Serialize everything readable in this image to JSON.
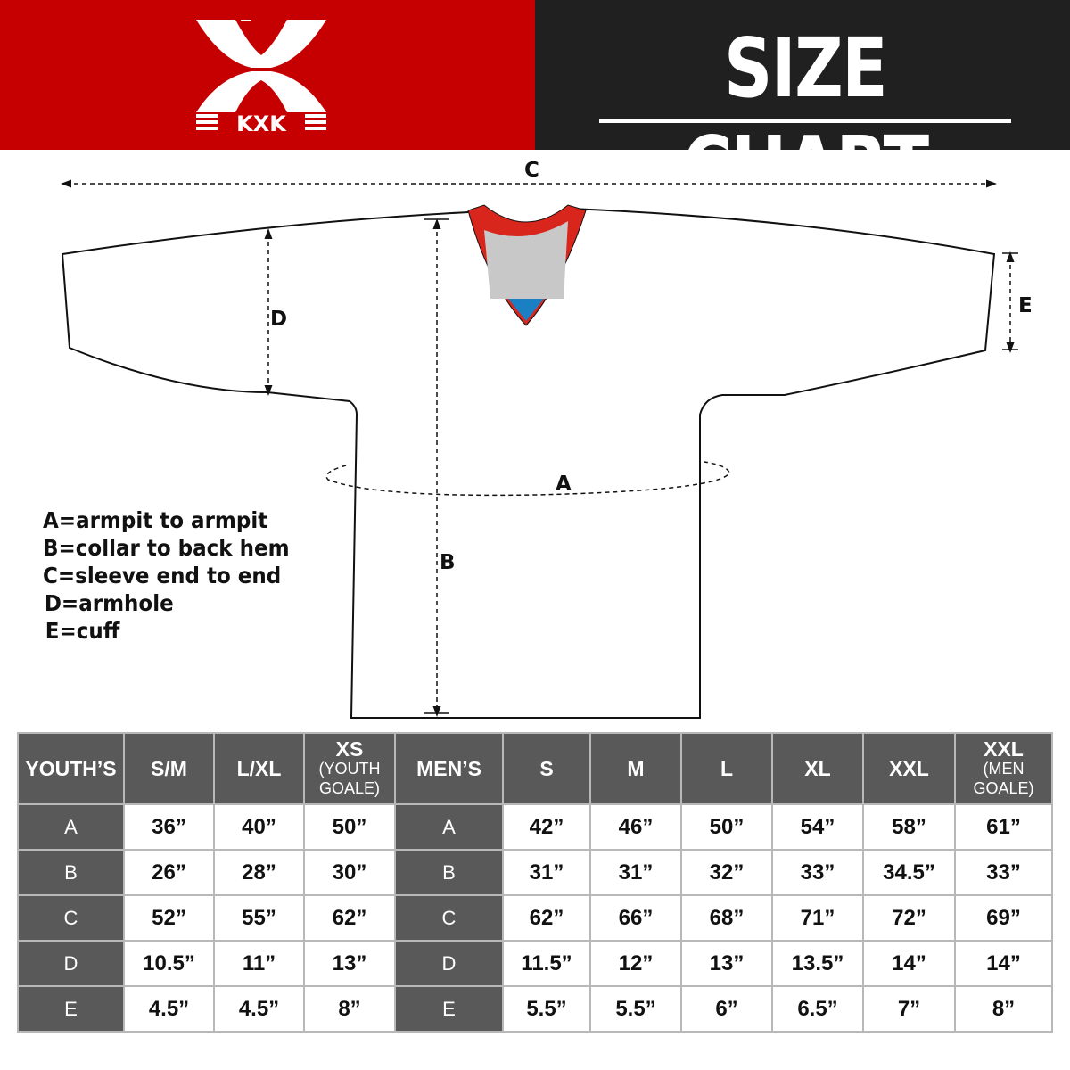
{
  "brand": {
    "logo_text": "KXK",
    "primary_color": "#c60000",
    "dark_color": "#202020"
  },
  "header": {
    "title": "SIZE CHART"
  },
  "diagram": {
    "labels": {
      "a": "A",
      "b": "B",
      "c": "C",
      "d": "D",
      "e": "E"
    },
    "collar_colors": {
      "trim": "#d9261c",
      "inner": "#c8c8c8",
      "tag": "#1b7fc4"
    }
  },
  "legend": [
    "A=armpit to armpit",
    "B=collar to back hem",
    "C=sleeve end to end",
    "D=armhole",
    "E=cuff"
  ],
  "table": {
    "youth_header": "YOUTH’S",
    "youth_sizes": [
      {
        "main": "S/M",
        "sub": ""
      },
      {
        "main": "L/XL",
        "sub": ""
      },
      {
        "main": "XS",
        "sub": "(YOUTH GOALE)"
      }
    ],
    "men_header": "MEN’S",
    "men_sizes": [
      {
        "main": "S",
        "sub": ""
      },
      {
        "main": "M",
        "sub": ""
      },
      {
        "main": "L",
        "sub": ""
      },
      {
        "main": "XL",
        "sub": ""
      },
      {
        "main": "XXL",
        "sub": ""
      },
      {
        "main": "XXL",
        "sub": "(MEN GOALE)"
      }
    ],
    "rows": [
      {
        "label": "A",
        "youth": [
          "36”",
          "40”",
          "50”"
        ],
        "men": [
          "42”",
          "46”",
          "50”",
          "54”",
          "58”",
          "61”"
        ]
      },
      {
        "label": "B",
        "youth": [
          "26”",
          "28”",
          "30”"
        ],
        "men": [
          "31”",
          "31”",
          "32”",
          "33”",
          "34.5”",
          "33”"
        ]
      },
      {
        "label": "C",
        "youth": [
          "52”",
          "55”",
          "62”"
        ],
        "men": [
          "62”",
          "66”",
          "68”",
          "71”",
          "72”",
          "69”"
        ]
      },
      {
        "label": "D",
        "youth": [
          "10.5”",
          "11”",
          "13”"
        ],
        "men": [
          "11.5”",
          "12”",
          "13”",
          "13.5”",
          "14”",
          "14”"
        ]
      },
      {
        "label": "E",
        "youth": [
          "4.5”",
          "4.5”",
          "8”"
        ],
        "men": [
          "5.5”",
          "5.5”",
          "6”",
          "6.5”",
          "7”",
          "8”"
        ]
      }
    ]
  }
}
